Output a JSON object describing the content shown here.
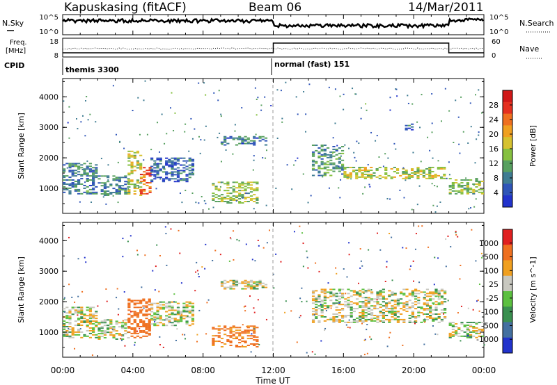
{
  "header": {
    "station": "Kapuskasing (fitACF)",
    "beam": "Beam 06",
    "date": "14/Mar/2011"
  },
  "noise_panel": {
    "left_label": "N.Sky",
    "ticks_left": [
      "10^5",
      "10^0"
    ],
    "ticks_right": [
      "10^5",
      "10^0"
    ],
    "right_label": "N.Search"
  },
  "freq_panel": {
    "left_label_1": "Freq.",
    "left_label_2": "[MHz]",
    "ticks_left": [
      "18",
      "8"
    ],
    "ticks_right": [
      "60",
      "0"
    ],
    "right_label": "Nave"
  },
  "cpid": {
    "label": "CPID",
    "mode_1": "themis 3300",
    "mode_2": "normal (fast) 151"
  },
  "x_axis": {
    "label": "Time UT",
    "ticks": [
      "00:00",
      "04:00",
      "08:00",
      "12:00",
      "16:00",
      "20:00",
      "00:00"
    ]
  },
  "colorbars": {
    "power": {
      "label": "Power [dB]",
      "ticks": [
        "28",
        "24",
        "20",
        "16",
        "12",
        "8",
        "4"
      ],
      "colors": [
        "#2233cc",
        "#2f55b8",
        "#3f7c92",
        "#58a060",
        "#86c040",
        "#d6c230",
        "#f0a020",
        "#ef7020",
        "#e53020",
        "#d01818"
      ]
    },
    "velocity": {
      "label": "Velocity [m s^-1]",
      "ticks": [
        "1000",
        "500",
        "100",
        "25",
        "-25",
        "-100",
        "-500",
        "-1000"
      ],
      "colors": [
        "#2233cc",
        "#4470a0",
        "#3a9050",
        "#5cc040",
        "#c8c8c0",
        "#f0a020",
        "#ef7020",
        "#e02020"
      ]
    }
  },
  "chart_data": [
    {
      "type": "heatmap",
      "title": "Power",
      "xlabel": "",
      "ylabel": "Slant Range [km]",
      "xlim": [
        0,
        24
      ],
      "ylim": [
        180,
        4600
      ],
      "yticks": [
        "4000",
        "3000",
        "2000",
        "1000"
      ],
      "colorbar_label": "Power [dB]",
      "regions": [
        {
          "t": [
            0.0,
            2.0
          ],
          "range": [
            800,
            1800
          ],
          "value": 8
        },
        {
          "t": [
            2.0,
            3.7
          ],
          "range": [
            750,
            1400
          ],
          "value": 8
        },
        {
          "t": [
            3.7,
            4.4
          ],
          "range": [
            750,
            2200
          ],
          "value": 16
        },
        {
          "t": [
            4.4,
            5.0
          ],
          "range": [
            800,
            1700
          ],
          "value": 24
        },
        {
          "t": [
            5.0,
            7.5
          ],
          "range": [
            1200,
            2000
          ],
          "value": 6
        },
        {
          "t": [
            8.5,
            11.0
          ],
          "range": [
            500,
            1200
          ],
          "value": 14
        },
        {
          "t": [
            9.0,
            11.5
          ],
          "range": [
            2400,
            2700
          ],
          "value": 8
        },
        {
          "t": [
            14.2,
            16.0
          ],
          "range": [
            1400,
            2400
          ],
          "value": 10
        },
        {
          "t": [
            16.0,
            21.8
          ],
          "range": [
            1300,
            1700
          ],
          "value": 16
        },
        {
          "t": [
            19.5,
            20.0
          ],
          "range": [
            2900,
            3100
          ],
          "value": 6
        },
        {
          "t": [
            22.0,
            24.0
          ],
          "range": [
            800,
            1300
          ],
          "value": 14
        }
      ]
    },
    {
      "type": "heatmap",
      "title": "Velocity",
      "xlabel": "Time UT",
      "ylabel": "Slant Range [km]",
      "xlim": [
        0,
        24
      ],
      "ylim": [
        180,
        4600
      ],
      "yticks": [
        "4000",
        "3000",
        "2000",
        "1000"
      ],
      "colorbar_label": "Velocity [m s^-1]",
      "regions": [
        {
          "t": [
            0.0,
            2.0
          ],
          "range": [
            800,
            1800
          ],
          "value": 0
        },
        {
          "t": [
            2.0,
            3.7
          ],
          "range": [
            750,
            1400
          ],
          "value": 0
        },
        {
          "t": [
            3.7,
            5.0
          ],
          "range": [
            800,
            2100
          ],
          "value": -300
        },
        {
          "t": [
            5.0,
            7.5
          ],
          "range": [
            1200,
            2000
          ],
          "value": 0
        },
        {
          "t": [
            8.5,
            11.0
          ],
          "range": [
            500,
            1200
          ],
          "value": -150
        },
        {
          "t": [
            9.0,
            11.5
          ],
          "range": [
            2400,
            2700
          ],
          "value": 0
        },
        {
          "t": [
            14.2,
            21.8
          ],
          "range": [
            1300,
            2400
          ],
          "value": 0
        },
        {
          "t": [
            22.0,
            24.0
          ],
          "range": [
            800,
            1300
          ],
          "value": 0
        }
      ]
    }
  ]
}
